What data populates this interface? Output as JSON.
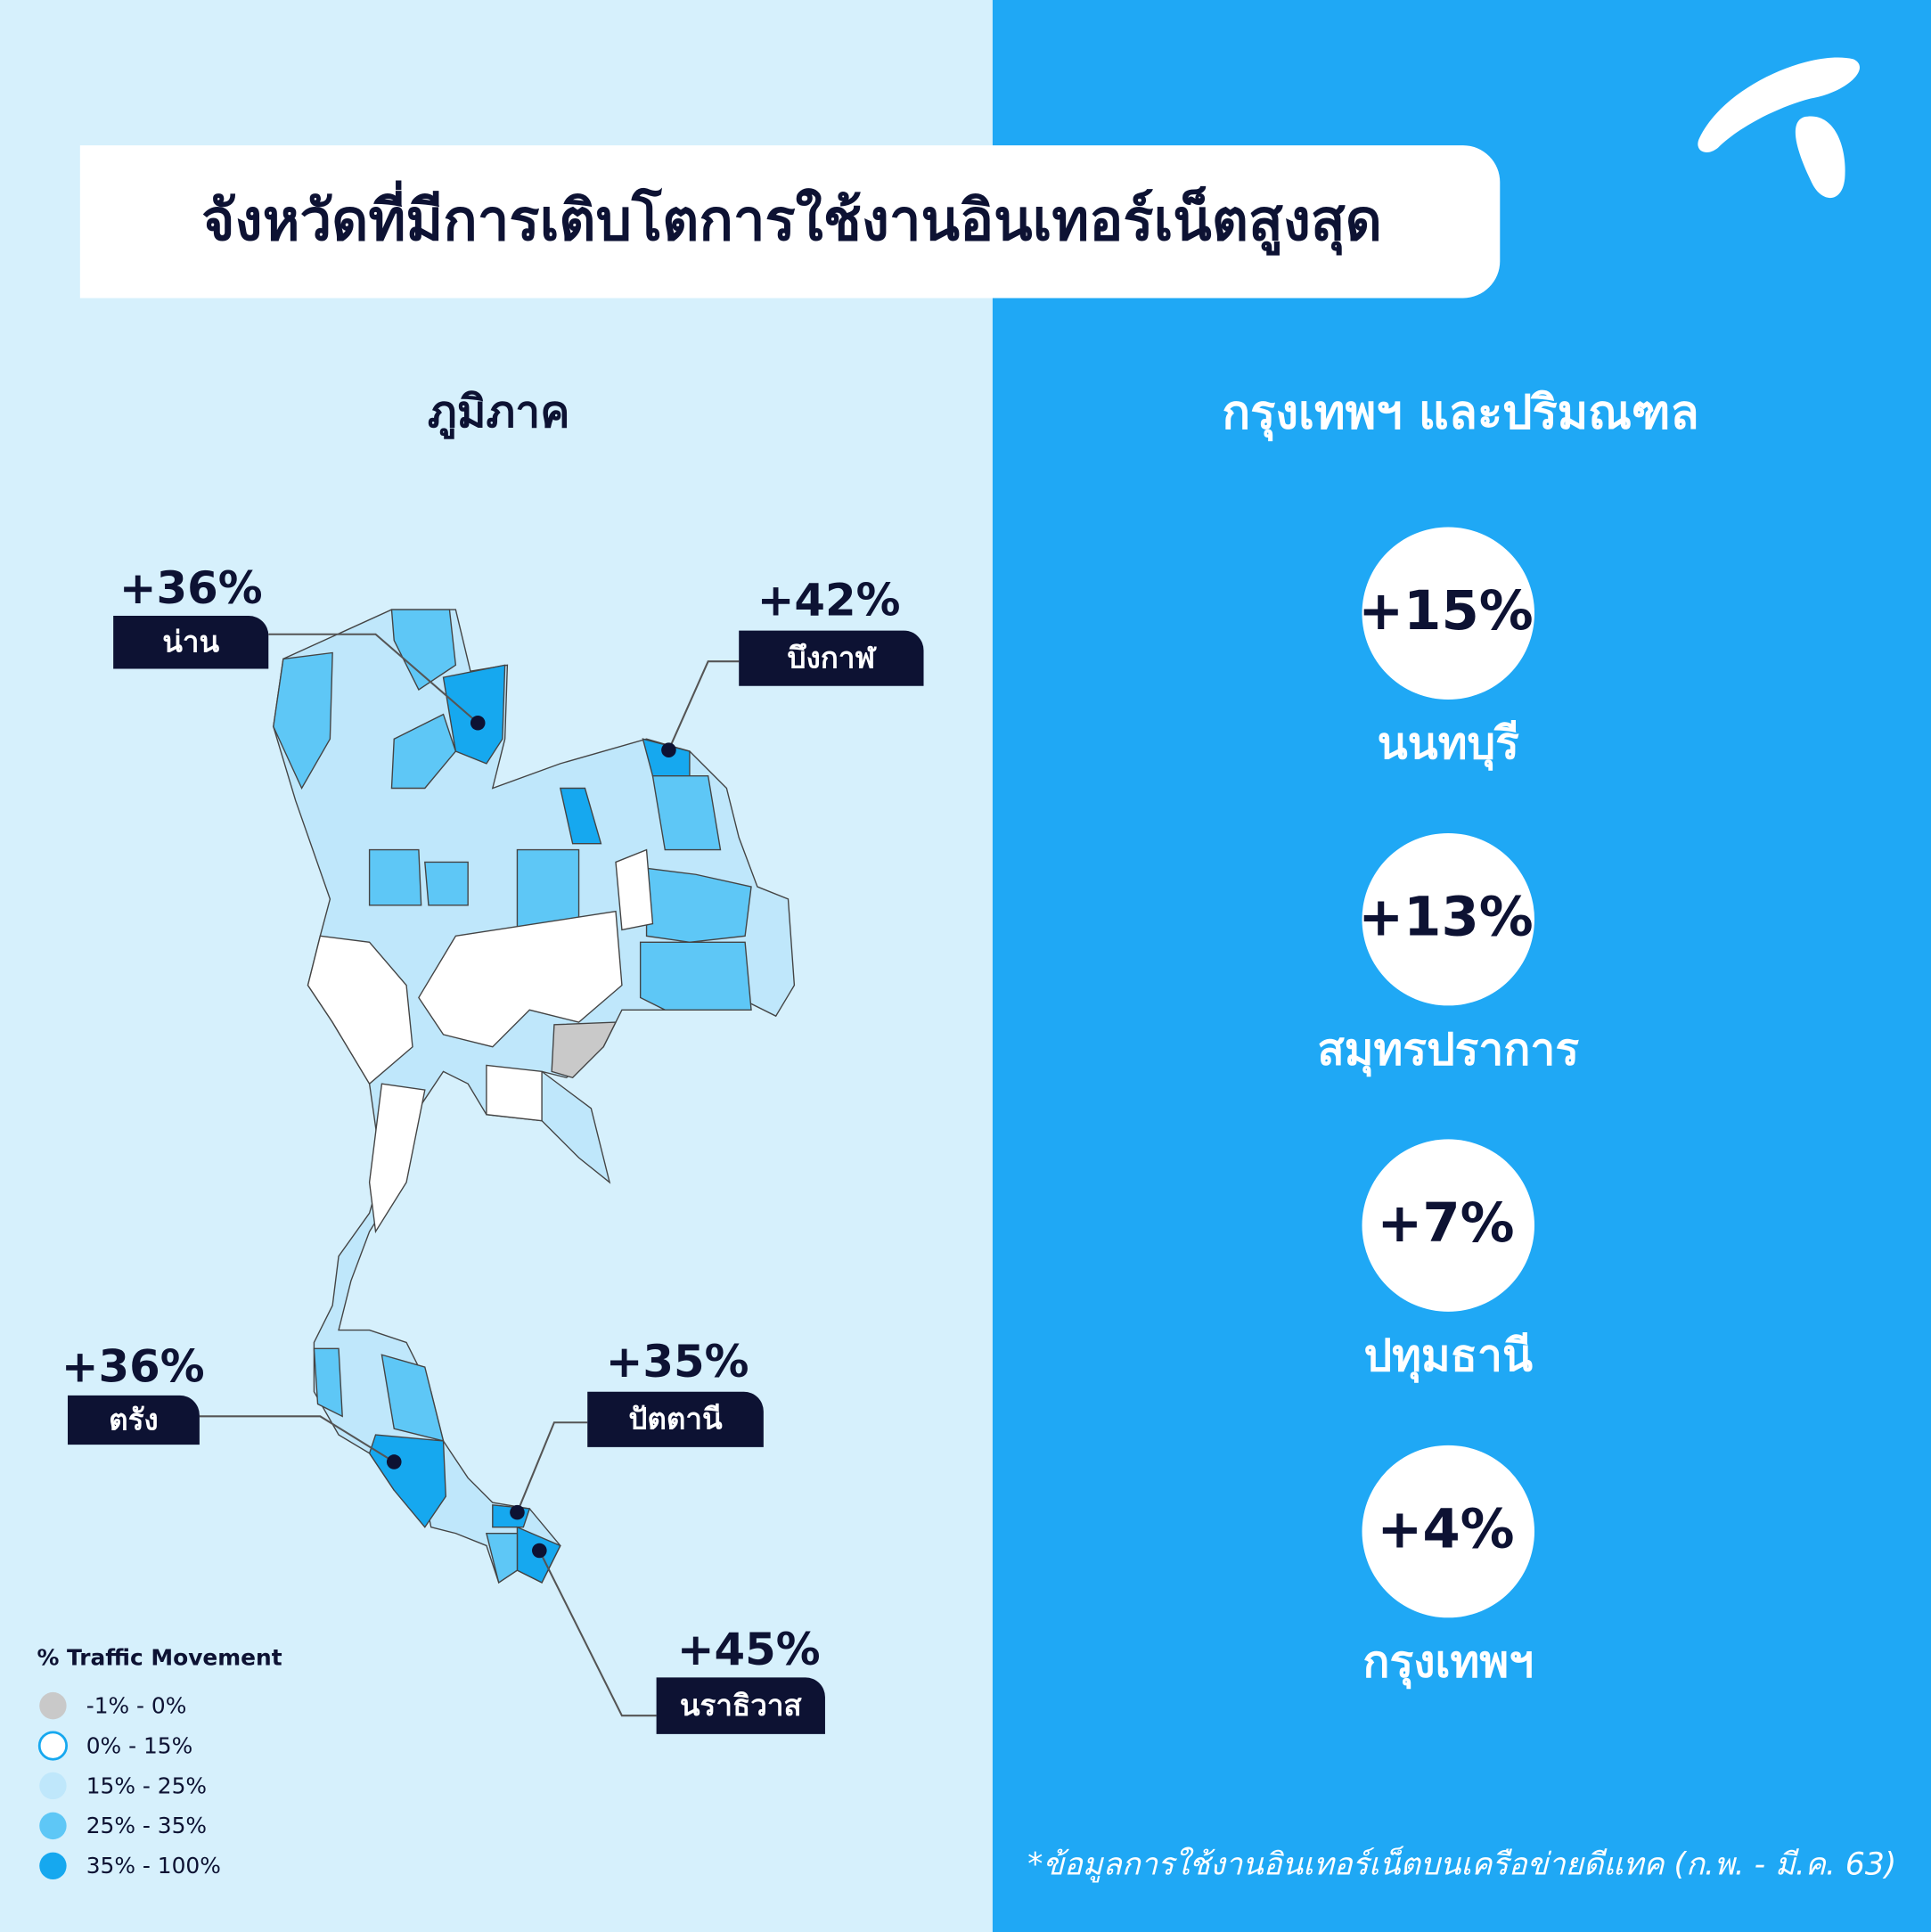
{
  "header": {
    "title": "จังหวัดที่มีการเติบโตการใช้งานอินเทอร์เน็ตสูงสุด"
  },
  "regional": {
    "heading": "ภูมิภาค",
    "callouts": [
      {
        "value": "+36%",
        "province": "น่าน"
      },
      {
        "value": "+42%",
        "province": "บึงกาฬ"
      },
      {
        "value": "+36%",
        "province": "ตรัง"
      },
      {
        "value": "+35%",
        "province": "ปัตตานี"
      },
      {
        "value": "+45%",
        "province": "นราธิวาส"
      }
    ],
    "legend": {
      "title": "% Traffic Movement",
      "items": [
        {
          "label": "-1% - 0%",
          "color": "#c9c9c9"
        },
        {
          "label": "0% - 15%",
          "color": "#ffffff"
        },
        {
          "label": "15% - 25%",
          "color": "#bfe7fb"
        },
        {
          "label": "25% - 35%",
          "color": "#5ec7f6"
        },
        {
          "label": "35% - 100%",
          "color": "#16a8ef"
        }
      ]
    }
  },
  "metro": {
    "heading": "กรุงเทพฯ และปริมณฑล",
    "items": [
      {
        "value": "+15%",
        "province": "นนทบุรี"
      },
      {
        "value": "+13%",
        "province": "สมุทรปราการ"
      },
      {
        "value": "+7%",
        "province": "ปทุมธานี"
      },
      {
        "value": "+4%",
        "province": "กรุงเทพฯ"
      }
    ]
  },
  "footnote": "*ข้อมูลการใช้งานอินเทอร์เน็ตบนเครือข่ายดีแทค (ก.พ. - มี.ค. 63)"
}
